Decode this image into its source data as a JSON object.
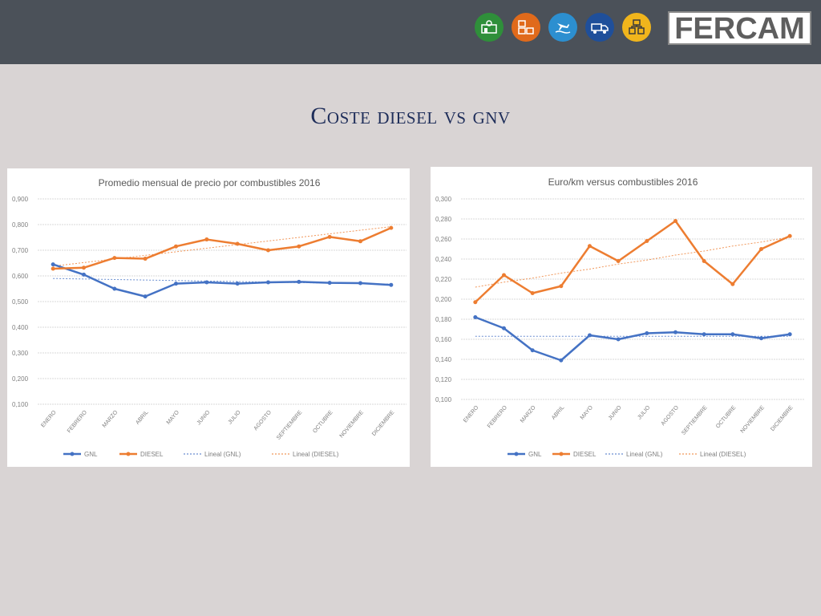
{
  "header": {
    "logo_text": "FERCAM",
    "icons": [
      {
        "name": "warehouse-icon",
        "color": "#2f8f3a"
      },
      {
        "name": "boxes-icon",
        "color": "#e06a1b"
      },
      {
        "name": "air-sea-icon",
        "color": "#2c8fd0"
      },
      {
        "name": "truck-icon",
        "color": "#1f4f9a"
      },
      {
        "name": "logistics-icon",
        "color": "#f0b51c"
      }
    ]
  },
  "slide": {
    "title": "Coste diesel vs gnv"
  },
  "colors": {
    "gnl": "#4472c4",
    "diesel": "#ed7d31"
  },
  "chart_data": [
    {
      "type": "line",
      "title": "Promedio mensual de precio por combustibles 2016",
      "categories": [
        "ENERO",
        "FEBRERO",
        "MARZO",
        "ABRIL",
        "MAYO",
        "JUNIO",
        "JULIO",
        "AGOSTO",
        "SEPTIEMBRE",
        "OCTUBRE",
        "NOVIEMBRE",
        "DICIEMBRE"
      ],
      "series": [
        {
          "name": "GNL",
          "values": [
            0.645,
            0.605,
            0.55,
            0.52,
            0.57,
            0.575,
            0.57,
            0.575,
            0.577,
            0.573,
            0.572,
            0.565
          ],
          "trend": [
            0.59,
            0.588,
            0.586,
            0.584,
            0.582,
            0.58,
            0.578,
            0.576,
            0.574,
            0.572,
            0.57,
            0.568
          ]
        },
        {
          "name": "DIESEL",
          "values": [
            0.628,
            0.632,
            0.67,
            0.667,
            0.715,
            0.742,
            0.725,
            0.7,
            0.715,
            0.752,
            0.735,
            0.787
          ],
          "trend": [
            0.638,
            0.652,
            0.666,
            0.68,
            0.694,
            0.708,
            0.722,
            0.736,
            0.75,
            0.764,
            0.778,
            0.792
          ]
        }
      ],
      "legend": [
        "GNL",
        "DIESEL",
        "Lineal (GNL)",
        "Lineal (DIESEL)"
      ],
      "yticks": [
        "0,100",
        "0,200",
        "0,300",
        "0,400",
        "0,500",
        "0,600",
        "0,700",
        "0,800",
        "0,900"
      ],
      "ylim": [
        0.1,
        0.9
      ],
      "grid": true,
      "legend_position": "bottom"
    },
    {
      "type": "line",
      "title": "Euro/km versus combustibles 2016",
      "categories": [
        "ENERO",
        "FEBRERO",
        "MARZO",
        "ABRIL",
        "MAYO",
        "JUNIO",
        "JULIO",
        "AGOSTO",
        "SEPTIEMBRE",
        "OCTUBRE",
        "NOVIEMBRE",
        "DICIEMBRE"
      ],
      "series": [
        {
          "name": "GNL",
          "values": [
            0.182,
            0.171,
            0.149,
            0.139,
            0.164,
            0.16,
            0.166,
            0.167,
            0.165,
            0.165,
            0.161,
            0.165
          ],
          "trend": [
            0.163,
            0.163,
            0.163,
            0.163,
            0.163,
            0.163,
            0.163,
            0.163,
            0.163,
            0.163,
            0.163,
            0.163
          ]
        },
        {
          "name": "DIESEL",
          "values": [
            0.197,
            0.224,
            0.206,
            0.213,
            0.253,
            0.238,
            0.258,
            0.278,
            0.238,
            0.215,
            0.25,
            0.263
          ],
          "trend": [
            0.212,
            0.217,
            0.221,
            0.226,
            0.23,
            0.235,
            0.239,
            0.244,
            0.248,
            0.253,
            0.257,
            0.262
          ]
        }
      ],
      "legend": [
        "GNL",
        "DIESEL",
        "Lineal (GNL)",
        "Lineal (DIESEL)"
      ],
      "yticks": [
        "0,100",
        "0,120",
        "0,140",
        "0,160",
        "0,180",
        "0,200",
        "0,220",
        "0,240",
        "0,260",
        "0,280",
        "0,300"
      ],
      "ylim": [
        0.1,
        0.3
      ],
      "grid": true,
      "legend_position": "bottom"
    }
  ]
}
